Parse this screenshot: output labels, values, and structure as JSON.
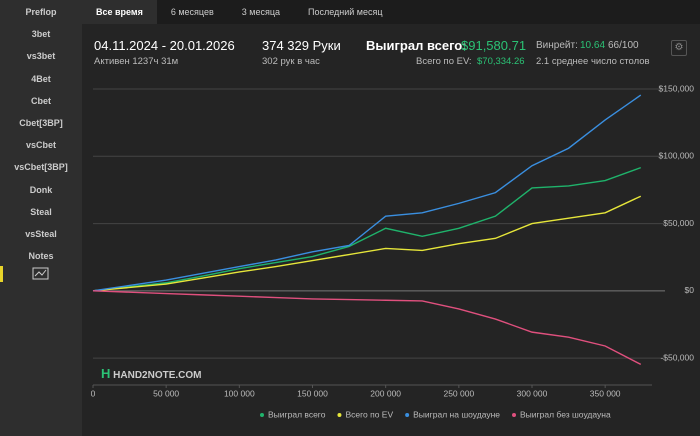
{
  "sidebar": [
    "Preflop",
    "3bet",
    "vs3bet",
    "4Bet",
    "Cbet",
    "Cbet[3BP]",
    "vsCbet",
    "vsCbet[3BP]",
    "Donk",
    "Steal",
    "vsSteal",
    "Notes"
  ],
  "tabs": [
    "Все время",
    "6 месяцев",
    "3 месяца",
    "Последний месяц"
  ],
  "header": {
    "period": "04.11.2024 - 20.01.2026",
    "active": "Активен 1237ч 31м",
    "hands": "374 329 Руки",
    "rate": "302 рук в час",
    "won_label": "Выиграл всего:",
    "won_value": "$91,580.71",
    "ev_label": "Всего по EV:",
    "ev_value": "$70,334.26",
    "winrate_label": "Винрейт:",
    "winrate_value": "10.64",
    "winrate_score": "66/100",
    "tables": "2.1 среднее число столов"
  },
  "logo": "HAND2NOTE.COM",
  "chart_data": {
    "type": "line",
    "x": [
      0,
      25000,
      50000,
      75000,
      100000,
      125000,
      150000,
      175000,
      200000,
      225000,
      250000,
      275000,
      300000,
      325000,
      350000,
      374329
    ],
    "series": [
      {
        "name": "Выиграл всего",
        "color": "#1fb36b",
        "values": [
          0,
          3000,
          6000,
          11000,
          16500,
          21000,
          25500,
          33000,
          46500,
          40500,
          46500,
          55500,
          76500,
          78000,
          82000,
          91581
        ]
      },
      {
        "name": "Всего по EV",
        "color": "#e6e63a",
        "values": [
          0,
          2500,
          5000,
          9500,
          14000,
          18000,
          22500,
          27000,
          31500,
          30000,
          35000,
          39000,
          50000,
          54000,
          58000,
          70334
        ]
      },
      {
        "name": "Выиграл на шоудауне",
        "color": "#3a8fe0",
        "values": [
          0,
          4000,
          8000,
          13000,
          18000,
          23000,
          29000,
          33700,
          55500,
          58000,
          65000,
          73000,
          93000,
          106000,
          127000,
          145500
        ]
      },
      {
        "name": "Выиграл без шоудауна",
        "color": "#e0507e",
        "values": [
          0,
          -1000,
          -2000,
          -3000,
          -4000,
          -5000,
          -6000,
          -6500,
          -7000,
          -7500,
          -13500,
          -21000,
          -30700,
          -34500,
          -41000,
          -54700
        ]
      }
    ],
    "xlim": [
      0,
      382000
    ],
    "xticks": [
      0,
      {
        "value": 50000,
        "label": "50 000"
      },
      {
        "value": 100000,
        "label": "100 000"
      },
      {
        "value": 150000,
        "label": "150 000"
      },
      {
        "value": 200000,
        "label": "200 000"
      },
      {
        "value": 250000,
        "label": "250 000"
      },
      {
        "value": 300000,
        "label": "300 000"
      },
      {
        "value": 350000,
        "label": "350 000"
      }
    ],
    "ylim": [
      -70000,
      153000
    ],
    "yticks": [
      {
        "value": -50000,
        "label": "-$50,000"
      },
      {
        "value": 0,
        "label": "$0"
      },
      {
        "value": 50000,
        "label": "$50,000"
      },
      {
        "value": 100000,
        "label": "$100,000"
      },
      {
        "value": 150000,
        "label": "$150,000"
      }
    ],
    "grid": true
  }
}
